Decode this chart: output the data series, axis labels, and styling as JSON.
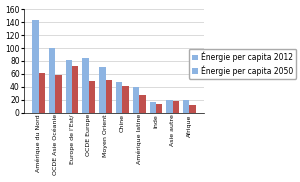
{
  "categories": [
    "Amérique du Nord",
    "OCDE Asie Océanie",
    "Europe de l’Est/",
    "OCDE Europe",
    "Moyen Orient",
    "Chine",
    "Amérique latine",
    "Inde",
    "Asie autre",
    "Afrique"
  ],
  "values_2012": [
    143,
    100,
    82,
    84,
    70,
    48,
    40,
    17,
    20,
    20
  ],
  "values_2050": [
    62,
    59,
    73,
    49,
    50,
    42,
    28,
    14,
    18,
    12
  ],
  "color_2012": "#8DB4E2",
  "color_2050": "#C0504D",
  "legend_2012": "Énergie per capita 2012",
  "legend_2050": "Énergie per capita 2050",
  "ylim": [
    0,
    160
  ],
  "yticks": [
    0,
    20,
    40,
    60,
    80,
    100,
    120,
    140,
    160
  ],
  "xlabel_fontsize": 4.5,
  "legend_fontsize": 5.5,
  "ytick_fontsize": 5.5,
  "bar_width": 0.38,
  "figsize": [
    3.0,
    1.82
  ],
  "dpi": 100
}
